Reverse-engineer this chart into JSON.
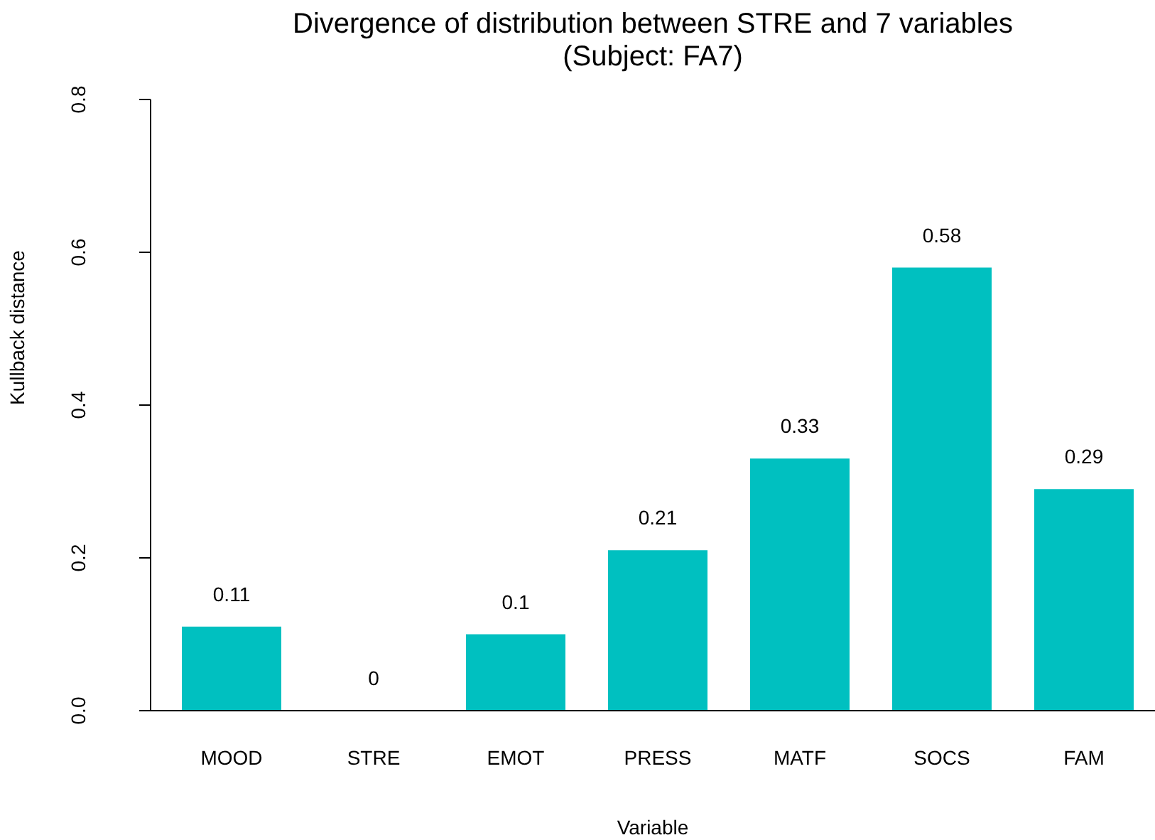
{
  "chart_data": {
    "type": "bar",
    "title": "Divergence of distribution between STRE and 7 variables",
    "subtitle": "(Subject: FA7)",
    "xlabel": "Variable",
    "ylabel": "Kullback distance",
    "categories": [
      "MOOD",
      "STRE",
      "EMOT",
      "PRESS",
      "MATF",
      "SOCS",
      "FAM"
    ],
    "values": [
      0.11,
      0,
      0.1,
      0.21,
      0.33,
      0.58,
      0.29
    ],
    "color": "#00c0c0",
    "ylim": [
      0,
      0.8
    ],
    "yticks": [
      {
        "value": 0,
        "label": "0.0"
      },
      0.2,
      0.4,
      0.6,
      0.8
    ],
    "data_labels": true,
    "grid": false,
    "legend": false
  }
}
